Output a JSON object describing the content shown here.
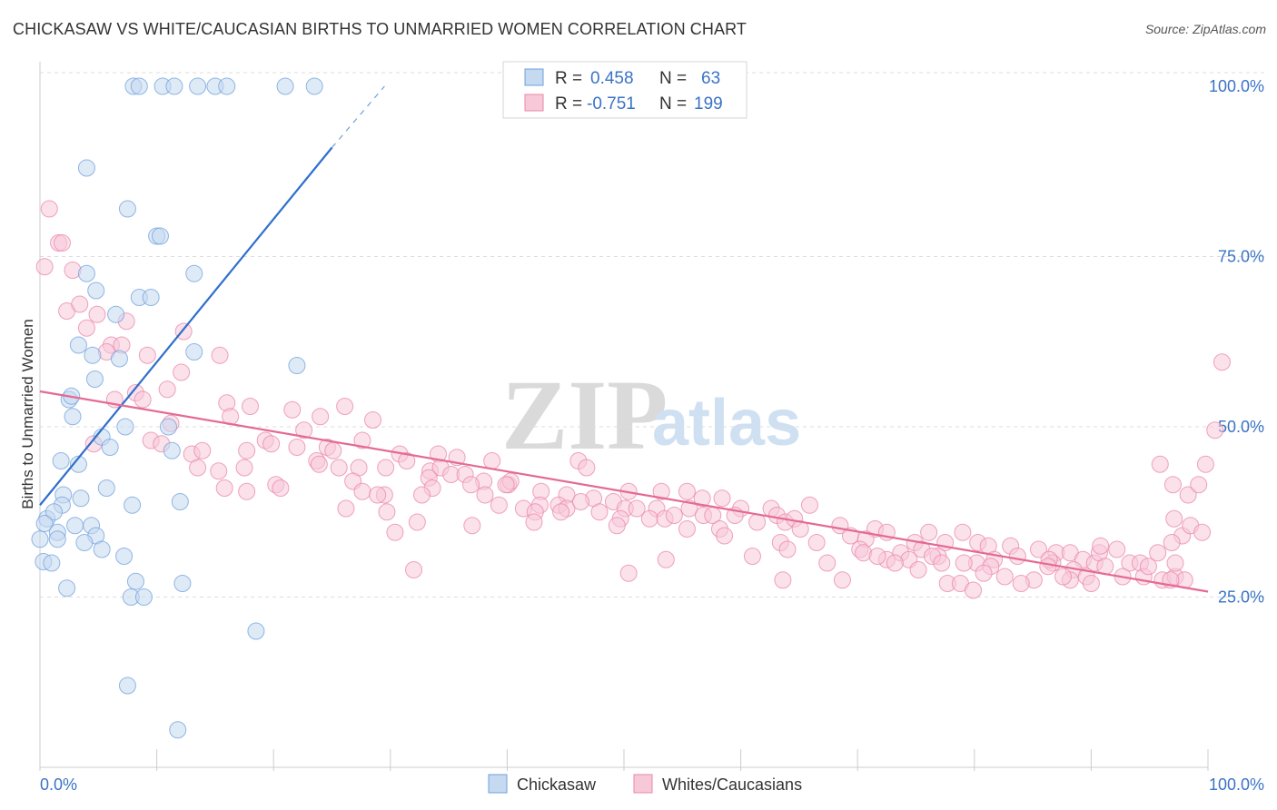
{
  "title": "CHICKASAW VS WHITE/CAUCASIAN BIRTHS TO UNMARRIED WOMEN CORRELATION CHART",
  "source": "Source: ZipAtlas.com",
  "watermark": {
    "zip": "ZIP",
    "atlas": "atlas"
  },
  "colors": {
    "blue": "#6fa0dc",
    "blue_fill": "#c5d9f1",
    "blue_line": "#2f6fcc",
    "pink": "#ea86a8",
    "pink_fill": "#f7c9d8",
    "pink_line": "#e46a94"
  },
  "legend": {
    "rows": [
      {
        "r_label": "R =",
        "r_value": "0.458",
        "n_label": "N =",
        "n_value": "63"
      },
      {
        "r_label": "R =",
        "r_value": "-0.751",
        "n_label": "N =",
        "n_value": "199"
      }
    ]
  },
  "bottom_legend": [
    "Chickasaw",
    "Whites/Caucasians"
  ],
  "chart_data": {
    "type": "scatter",
    "title": "CHICKASAW VS WHITE/CAUCASIAN BIRTHS TO UNMARRIED WOMEN CORRELATION CHART",
    "xlabel": "",
    "ylabel": "Births to Unmarried Women",
    "xlim": [
      0,
      100
    ],
    "ylim": [
      0,
      102
    ],
    "x_tick_labels": [
      "0.0%",
      "100.0%"
    ],
    "y_tick_labels": [
      "25.0%",
      "50.0%",
      "75.0%",
      "100.0%"
    ],
    "y_ticks": [
      25,
      50,
      75,
      100
    ],
    "series": [
      {
        "name": "Chickasaw",
        "r": 0.458,
        "n": 63,
        "trend": {
          "x0": 0,
          "y0": 38.5,
          "x1": 25,
          "y1": 91,
          "dash_to_x": 29.5,
          "dash_to_y": 100
        },
        "points": [
          [
            8,
            100
          ],
          [
            8.5,
            100
          ],
          [
            10.5,
            100
          ],
          [
            11.5,
            100
          ],
          [
            13.5,
            100
          ],
          [
            15,
            100
          ],
          [
            16,
            100
          ],
          [
            21,
            100
          ],
          [
            23.5,
            100
          ],
          [
            4,
            88
          ],
          [
            7.5,
            82
          ],
          [
            10,
            78
          ],
          [
            10.3,
            78
          ],
          [
            4,
            72.5
          ],
          [
            13.2,
            72.5
          ],
          [
            4.8,
            70
          ],
          [
            8.5,
            69
          ],
          [
            9.5,
            69
          ],
          [
            6.5,
            66.5
          ],
          [
            3.3,
            62
          ],
          [
            4.5,
            60.5
          ],
          [
            6.8,
            60
          ],
          [
            13.2,
            61
          ],
          [
            22,
            59
          ],
          [
            4.7,
            57
          ],
          [
            2.5,
            54
          ],
          [
            2.7,
            54.5
          ],
          [
            2.8,
            51.5
          ],
          [
            5.3,
            48.5
          ],
          [
            7.3,
            50
          ],
          [
            11,
            50
          ],
          [
            6,
            47
          ],
          [
            11.3,
            46.5
          ],
          [
            1.8,
            45
          ],
          [
            3.3,
            44.5
          ],
          [
            5.7,
            41
          ],
          [
            2,
            40
          ],
          [
            3.5,
            39.5
          ],
          [
            1.9,
            38.5
          ],
          [
            7.9,
            38.5
          ],
          [
            12,
            39
          ],
          [
            0.6,
            36.5
          ],
          [
            1.2,
            37.5
          ],
          [
            0.4,
            35.8
          ],
          [
            3,
            35.5
          ],
          [
            4.4,
            35.5
          ],
          [
            1.5,
            34.5
          ],
          [
            4.8,
            34
          ],
          [
            1.5,
            33.5
          ],
          [
            3.8,
            33
          ],
          [
            5.3,
            32
          ],
          [
            7.2,
            31
          ],
          [
            0.3,
            30.2
          ],
          [
            1,
            30
          ],
          [
            8.2,
            27.3
          ],
          [
            12.2,
            27
          ],
          [
            2.3,
            26.3
          ],
          [
            7.8,
            25
          ],
          [
            8.9,
            25
          ],
          [
            18.5,
            20
          ],
          [
            7.5,
            12
          ],
          [
            11.8,
            5.5
          ],
          [
            0,
            33.5
          ]
        ]
      },
      {
        "name": "Whites/Caucasians",
        "r": -0.751,
        "n": 199,
        "trend": {
          "x0": 0,
          "y0": 55.2,
          "x1": 100,
          "y1": 25.8
        },
        "points": [
          [
            0.8,
            82
          ],
          [
            1.6,
            77
          ],
          [
            1.9,
            77
          ],
          [
            0.4,
            73.5
          ],
          [
            2.8,
            73
          ],
          [
            2.3,
            67
          ],
          [
            3.4,
            68
          ],
          [
            4,
            64.5
          ],
          [
            4.9,
            66.5
          ],
          [
            7.4,
            65.5
          ],
          [
            6.1,
            62
          ],
          [
            5.7,
            61
          ],
          [
            7,
            62
          ],
          [
            9.2,
            60.5
          ],
          [
            12.3,
            64
          ],
          [
            15.4,
            60.5
          ],
          [
            12.1,
            58
          ],
          [
            8.2,
            55
          ],
          [
            8.8,
            54
          ],
          [
            10.9,
            55.5
          ],
          [
            6.4,
            54
          ],
          [
            16,
            53.5
          ],
          [
            18,
            53
          ],
          [
            16.3,
            51.5
          ],
          [
            21.6,
            52.5
          ],
          [
            24,
            51.5
          ],
          [
            26.1,
            53
          ],
          [
            28.5,
            51
          ],
          [
            11.2,
            50.5
          ],
          [
            22.6,
            49.5
          ],
          [
            9.5,
            48
          ],
          [
            10.4,
            47.5
          ],
          [
            4.6,
            47.5
          ],
          [
            19.3,
            48
          ],
          [
            19.8,
            47.5
          ],
          [
            22,
            47
          ],
          [
            27.6,
            48
          ],
          [
            24.6,
            47
          ],
          [
            25.1,
            46.5
          ],
          [
            13,
            46
          ],
          [
            13.9,
            46.5
          ],
          [
            17.7,
            46.5
          ],
          [
            30.8,
            46
          ],
          [
            34.1,
            46
          ],
          [
            35.7,
            45.5
          ],
          [
            31.4,
            45
          ],
          [
            23.7,
            45
          ],
          [
            38.7,
            45
          ],
          [
            46.1,
            45
          ],
          [
            46.8,
            44
          ],
          [
            15.3,
            43.5
          ],
          [
            17.5,
            44
          ],
          [
            13.5,
            44
          ],
          [
            23.9,
            44.5
          ],
          [
            25.6,
            44
          ],
          [
            27.3,
            44
          ],
          [
            29.6,
            44
          ],
          [
            33.4,
            43.5
          ],
          [
            34.3,
            44
          ],
          [
            35.2,
            43
          ],
          [
            36.4,
            43
          ],
          [
            38,
            42
          ],
          [
            33.3,
            42.5
          ],
          [
            36.9,
            41.5
          ],
          [
            33.6,
            41
          ],
          [
            15.8,
            41
          ],
          [
            17.7,
            40.5
          ],
          [
            20.2,
            41.5
          ],
          [
            20.6,
            41
          ],
          [
            26.8,
            42
          ],
          [
            27.6,
            40.5
          ],
          [
            29.5,
            40
          ],
          [
            32.7,
            40
          ],
          [
            40.1,
            41.5
          ],
          [
            40.3,
            42
          ],
          [
            39.9,
            41.5
          ],
          [
            28.9,
            40
          ],
          [
            38.1,
            40
          ],
          [
            42.9,
            40.5
          ],
          [
            45.1,
            40
          ],
          [
            47.4,
            39.5
          ],
          [
            50.4,
            40.5
          ],
          [
            55.4,
            40.5
          ],
          [
            53.2,
            40.5
          ],
          [
            56.7,
            39.5
          ],
          [
            58.4,
            39.5
          ],
          [
            39.3,
            38.5
          ],
          [
            41.4,
            38
          ],
          [
            42.8,
            38.5
          ],
          [
            44.4,
            38.5
          ],
          [
            45.1,
            38
          ],
          [
            46.3,
            39
          ],
          [
            49.1,
            39
          ],
          [
            50.1,
            38
          ],
          [
            51.1,
            38
          ],
          [
            52.8,
            38
          ],
          [
            55.6,
            38
          ],
          [
            60,
            38
          ],
          [
            56.8,
            37
          ],
          [
            59.5,
            37
          ],
          [
            62.6,
            38
          ],
          [
            65.9,
            38.5
          ],
          [
            29.7,
            37.5
          ],
          [
            42.4,
            37.5
          ],
          [
            47.9,
            37.5
          ],
          [
            49.7,
            36.5
          ],
          [
            52.2,
            36.5
          ],
          [
            53.5,
            36.5
          ],
          [
            54.3,
            37
          ],
          [
            57.6,
            37
          ],
          [
            61.4,
            36
          ],
          [
            63.1,
            37
          ],
          [
            63.8,
            36
          ],
          [
            64.6,
            36.5
          ],
          [
            65.1,
            35
          ],
          [
            68.5,
            35.5
          ],
          [
            71.5,
            35
          ],
          [
            72.5,
            34.5
          ],
          [
            76.1,
            34.5
          ],
          [
            79,
            34.5
          ],
          [
            26.2,
            38
          ],
          [
            32.3,
            36
          ],
          [
            37,
            35.5
          ],
          [
            42.3,
            36
          ],
          [
            44.6,
            37.5
          ],
          [
            49.4,
            35.5
          ],
          [
            55.4,
            35
          ],
          [
            58.2,
            35
          ],
          [
            30.4,
            34.5
          ],
          [
            58.6,
            34
          ],
          [
            63.4,
            33
          ],
          [
            66.5,
            33
          ],
          [
            69.4,
            34
          ],
          [
            70.7,
            33.5
          ],
          [
            74.9,
            33
          ],
          [
            77.5,
            33
          ],
          [
            80.3,
            33
          ],
          [
            81.2,
            32.5
          ],
          [
            83.1,
            32.5
          ],
          [
            64,
            32
          ],
          [
            70.2,
            32
          ],
          [
            70.5,
            31.5
          ],
          [
            73.7,
            31.5
          ],
          [
            75.5,
            32
          ],
          [
            76.9,
            31
          ],
          [
            83.7,
            31
          ],
          [
            87,
            31.5
          ],
          [
            86.7,
            30
          ],
          [
            88.2,
            31.5
          ],
          [
            72.5,
            30.5
          ],
          [
            74.4,
            30.5
          ],
          [
            76.4,
            31
          ],
          [
            80.2,
            30
          ],
          [
            81.7,
            30.5
          ],
          [
            85.5,
            32
          ],
          [
            86.4,
            30.5
          ],
          [
            89.3,
            30.5
          ],
          [
            90.3,
            30
          ],
          [
            90.7,
            31.5
          ],
          [
            90.8,
            32.5
          ],
          [
            92.2,
            32
          ],
          [
            61,
            31
          ],
          [
            67.4,
            30
          ],
          [
            71.7,
            31
          ],
          [
            73.2,
            30
          ],
          [
            77.2,
            30
          ],
          [
            79.1,
            30
          ],
          [
            81.4,
            29.5
          ],
          [
            86.3,
            29.5
          ],
          [
            88.5,
            29
          ],
          [
            91.2,
            29.5
          ],
          [
            93.3,
            30
          ],
          [
            94.2,
            30
          ],
          [
            53.6,
            30.5
          ],
          [
            75.2,
            29
          ],
          [
            80.8,
            28.5
          ],
          [
            82.6,
            28
          ],
          [
            85.1,
            27.5
          ],
          [
            88.2,
            27.5
          ],
          [
            89.6,
            28
          ],
          [
            92.7,
            28
          ],
          [
            94.5,
            28
          ],
          [
            94.9,
            29.5
          ],
          [
            96.1,
            27.5
          ],
          [
            97.2,
            28
          ],
          [
            98,
            27.5
          ],
          [
            50.4,
            28.5
          ],
          [
            63.6,
            27.5
          ],
          [
            68.7,
            27.5
          ],
          [
            77.7,
            27
          ],
          [
            78.8,
            27
          ],
          [
            79.9,
            26
          ],
          [
            84,
            27
          ],
          [
            87.6,
            28
          ],
          [
            90,
            27
          ],
          [
            32,
            29
          ],
          [
            96.8,
            27.5
          ],
          [
            95.9,
            44.5
          ],
          [
            97,
            41.5
          ],
          [
            98.3,
            40
          ],
          [
            99.2,
            41.5
          ],
          [
            99.8,
            44.5
          ],
          [
            100.6,
            49.5
          ],
          [
            101.2,
            59.5
          ],
          [
            97.8,
            34
          ],
          [
            97.1,
            36.5
          ],
          [
            98.5,
            35.5
          ],
          [
            99.5,
            34.5
          ],
          [
            96.9,
            33
          ],
          [
            95.7,
            31.5
          ],
          [
            97.2,
            30
          ]
        ]
      }
    ]
  }
}
